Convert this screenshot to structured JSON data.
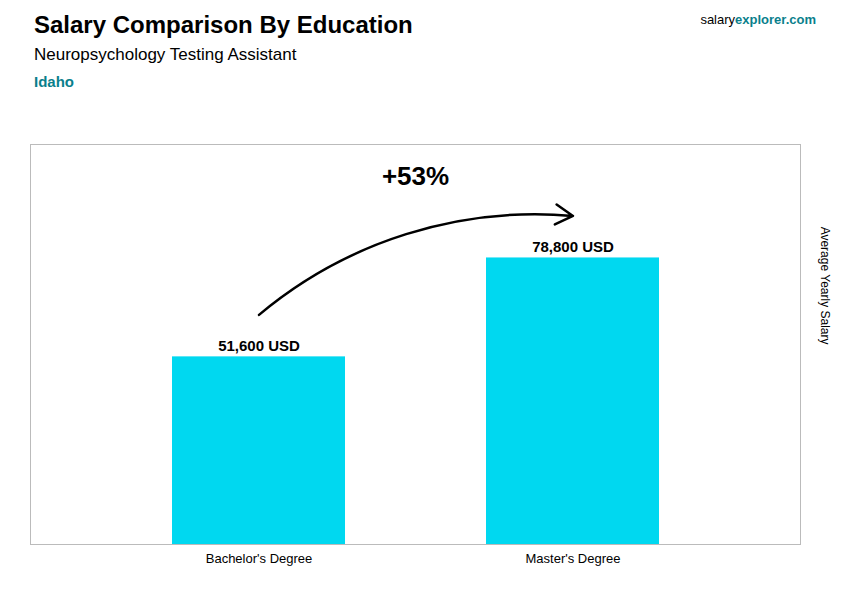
{
  "chart_data": {
    "type": "bar",
    "title": "Salary Comparison By Education",
    "subtitle": "Neuropsychology Testing Assistant",
    "annotations": [
      "Idaho",
      "salary",
      "explorer.com",
      "+53%"
    ],
    "y_label": "Average Yearly Salary",
    "categories": [
      "Bachelor's Degree",
      "Master's Degree"
    ],
    "values": [
      51600,
      78800
    ],
    "value_labels": [
      "51,600 USD",
      "78,800 USD"
    ],
    "data_labels": true,
    "color": "#00d8f0",
    "ylim": [
      0,
      110000
    ],
    "tick_labels": "x"
  }
}
